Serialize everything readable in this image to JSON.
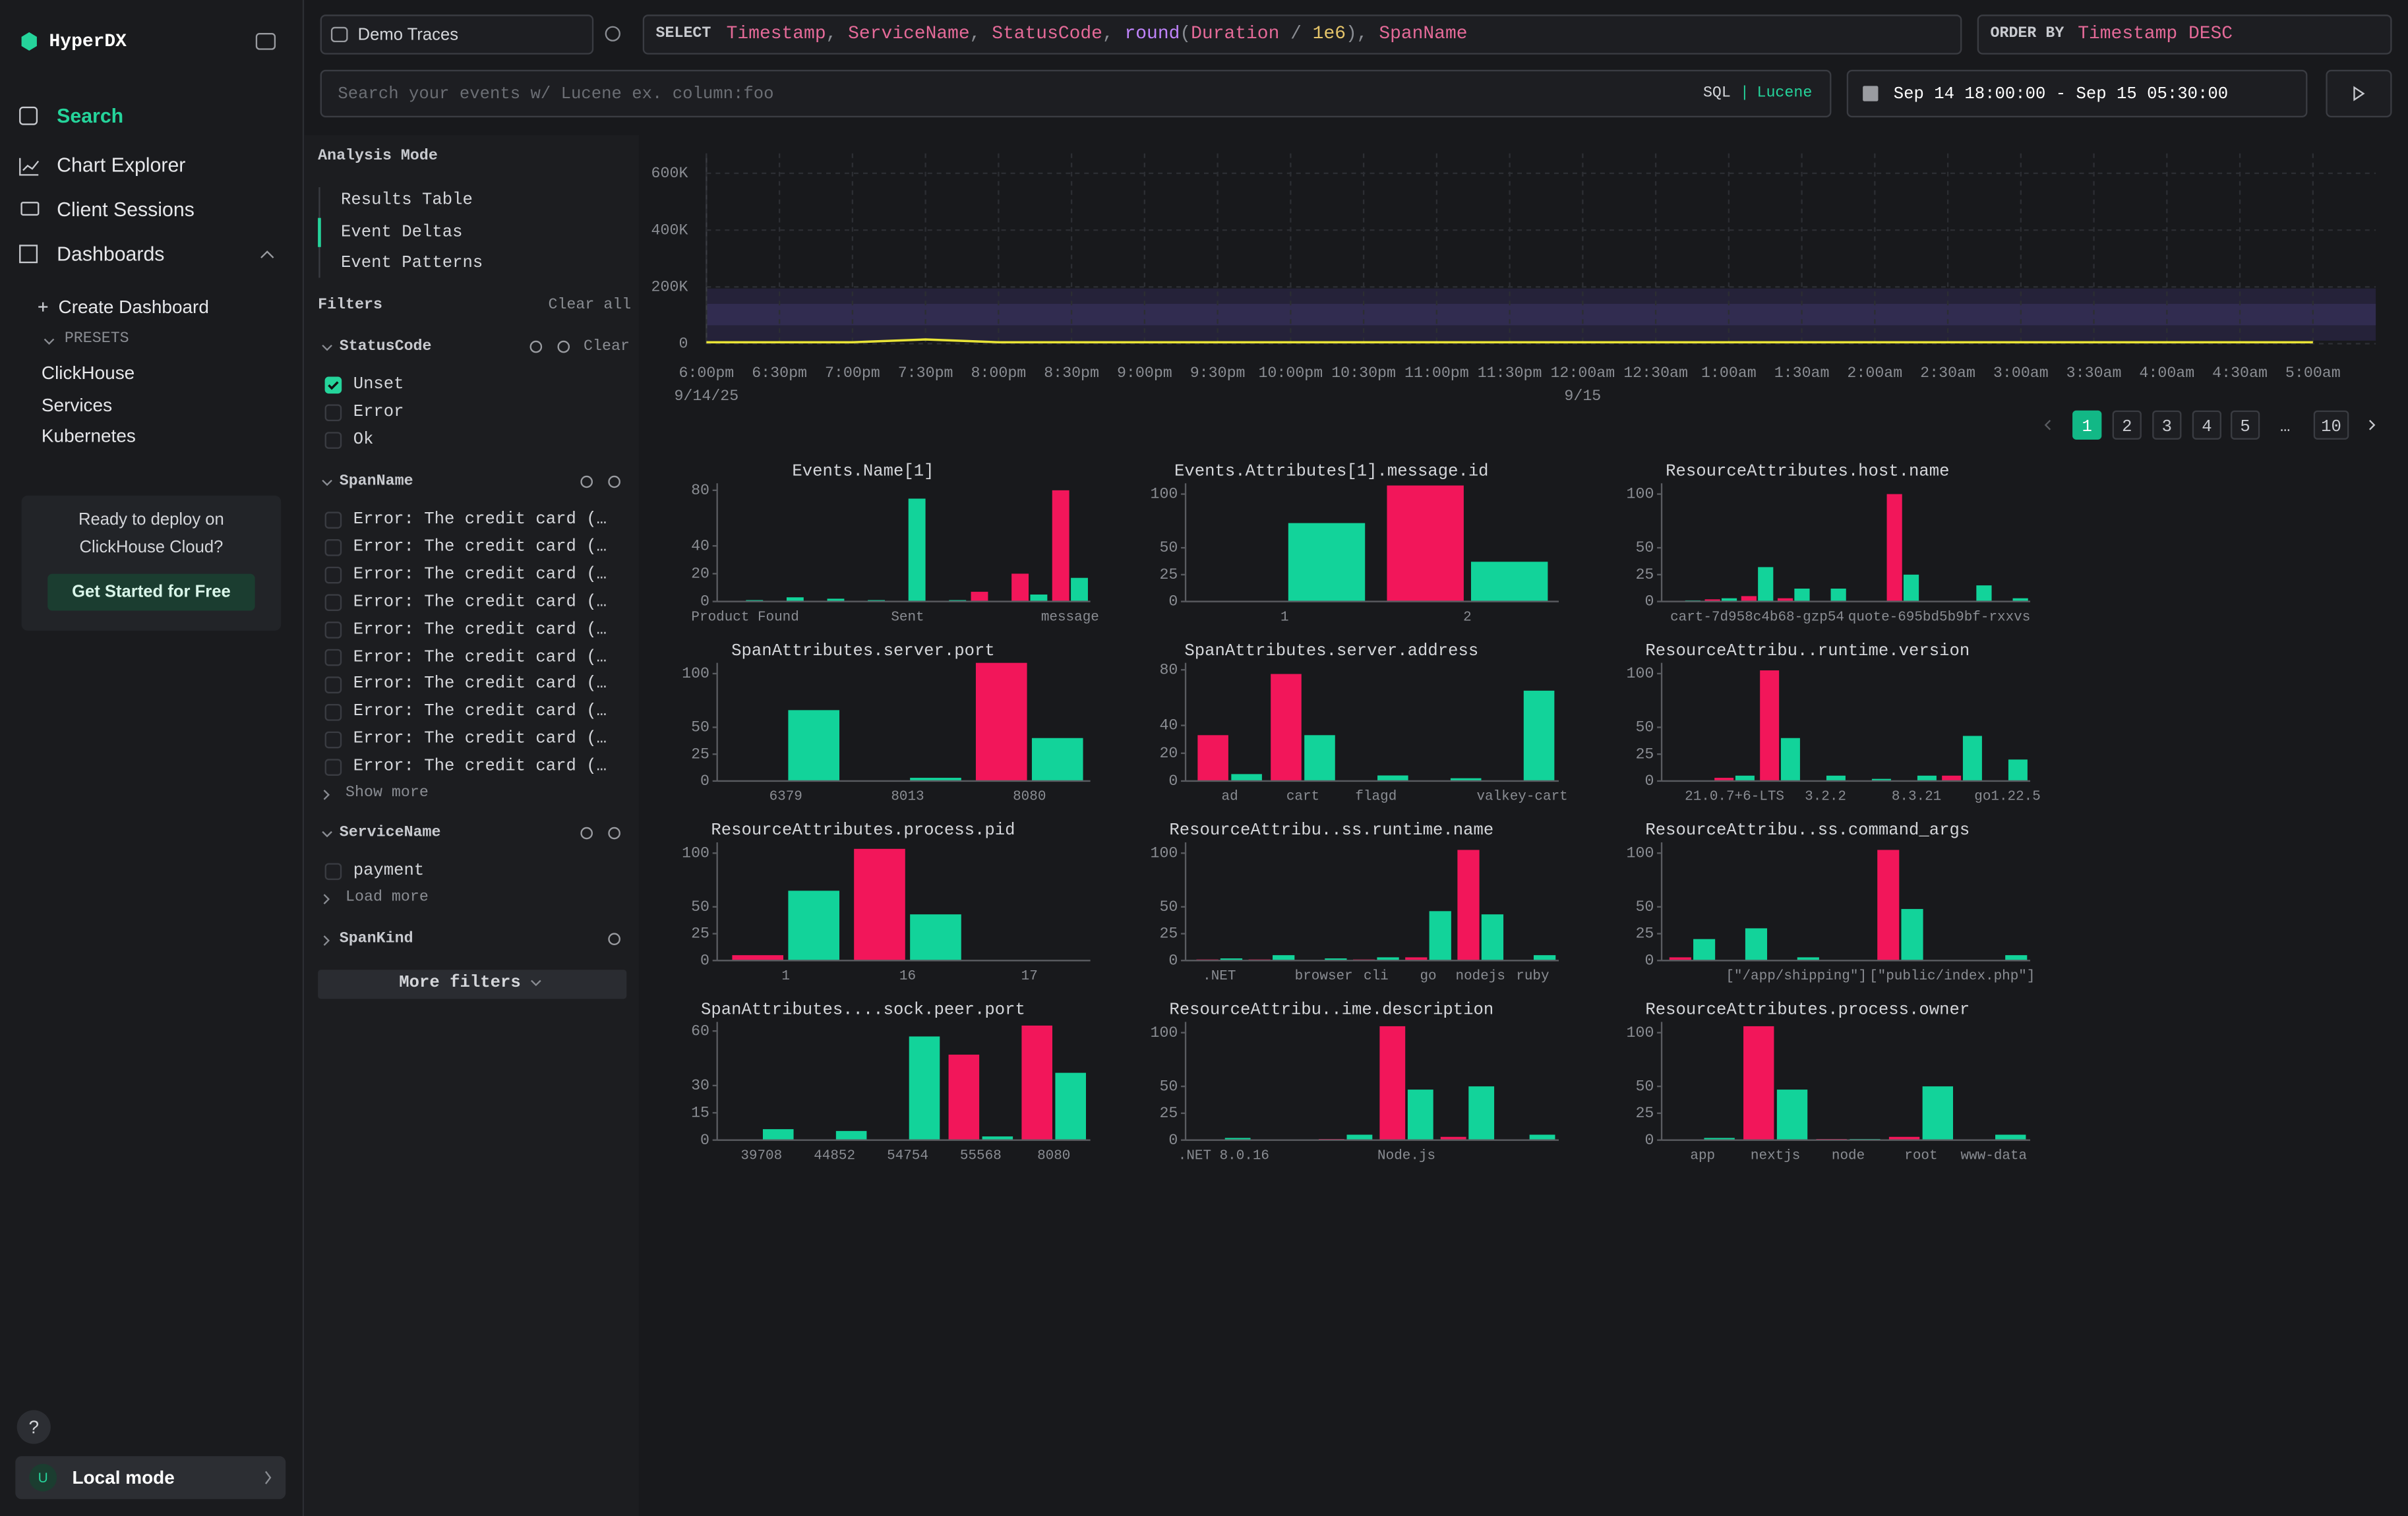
{
  "sidebar": {
    "brand": "HyperDX",
    "nav": [
      "Search",
      "Chart Explorer",
      "Client Sessions",
      "Dashboards"
    ],
    "create": "Create Dashboard",
    "presets_label": "PRESETS",
    "presets": [
      "ClickHouse",
      "Services",
      "Kubernetes"
    ],
    "promo": [
      "Ready to deploy on",
      "ClickHouse Cloud?"
    ],
    "promo_button": "Get Started for Free",
    "help": "?",
    "user_initial": "U",
    "mode": "Local mode"
  },
  "toolbar": {
    "source": "Demo Traces",
    "select_keyword": "SELECT",
    "select_tokens": [
      "Timestamp",
      ", ",
      "ServiceName",
      ", ",
      "StatusCode",
      ", ",
      "round",
      "(",
      "Duration",
      " / ",
      "1e6",
      "), ",
      "SpanName"
    ],
    "order_keyword": "ORDER BY",
    "order_value": "Timestamp DESC",
    "search_placeholder": "Search your events w/ Lucene ex. column:foo",
    "sql": "SQL",
    "separator": "|",
    "lucene": "Lucene",
    "date_range": "Sep 14 18:00:00 - Sep 15 05:30:00"
  },
  "analysis": {
    "title": "Analysis Mode",
    "modes": [
      "Results Table",
      "Event Deltas",
      "Event Patterns"
    ]
  },
  "filters": {
    "title": "Filters",
    "clear_all": "Clear all",
    "status": {
      "name": "StatusCode",
      "clear": "Clear",
      "options": [
        "Unset",
        "Error",
        "Ok"
      ]
    },
    "span": {
      "name": "SpanName",
      "options": [
        "Error: The credit card (…",
        "Error: The credit card (…",
        "Error: The credit card (…",
        "Error: The credit card (…",
        "Error: The credit card (…",
        "Error: The credit card (…",
        "Error: The credit card (…",
        "Error: The credit card (…",
        "Error: The credit card (…",
        "Error: The credit card (…"
      ],
      "more": "Show more"
    },
    "service": {
      "name": "ServiceName",
      "options": [
        "payment"
      ],
      "more": "Load more"
    },
    "kind": {
      "name": "SpanKind"
    },
    "more_filters": "More filters"
  },
  "pagination": [
    "1",
    "2",
    "3",
    "4",
    "5",
    "…",
    "10"
  ],
  "chart_data": [
    {
      "type": "line",
      "categories": [
        "6:00pm",
        "6:30pm",
        "7:00pm",
        "7:30pm",
        "8:00pm",
        "8:30pm",
        "9:00pm",
        "9:30pm",
        "10:00pm",
        "10:30pm",
        "11:00pm",
        "11:30pm",
        "12:00am",
        "12:30am",
        "1:00am",
        "1:30am",
        "2:00am",
        "2:30am",
        "3:00am",
        "3:30am",
        "4:00am",
        "4:30am",
        "5:00am"
      ],
      "date_labels": [
        "9/14/25",
        "9/15"
      ],
      "values": [
        5000,
        5000,
        5000,
        15000,
        5000,
        5000,
        5000,
        5000,
        5000,
        5000,
        5000,
        5000,
        5000,
        5000,
        5000,
        5000,
        5000,
        5000,
        5000,
        5000,
        5000,
        5000,
        5000
      ],
      "color": "#e8e337",
      "ylim": [
        0,
        670000
      ],
      "yticks": [
        0,
        {
          "value": 200000,
          "label": "200K"
        },
        {
          "value": 400000,
          "label": "400K"
        },
        {
          "value": 600000,
          "label": "600K"
        }
      ],
      "grid": true
    },
    {
      "type": "bar",
      "title": "Events.Name[1]",
      "categories": [
        "Product Found",
        null,
        null,
        null,
        "Sent",
        null,
        null,
        null,
        "message"
      ],
      "ylim": [
        0,
        85
      ],
      "yticks": [
        0,
        20,
        40,
        80
      ],
      "series": [
        {
          "color": "#f2165a",
          "values": [
            null,
            null,
            null,
            null,
            null,
            null,
            7,
            20,
            80
          ]
        },
        {
          "color": "#12d39a",
          "values": [
            1,
            3,
            2,
            1,
            74,
            1,
            null,
            5,
            17
          ]
        }
      ]
    },
    {
      "type": "bar",
      "title": "Events.Attributes[1].message.id",
      "categories": [
        "1",
        "2"
      ],
      "ylim": [
        0,
        110
      ],
      "yticks": [
        0,
        25,
        50,
        100
      ],
      "series": [
        {
          "color": "#f2165a",
          "values": [
            null,
            108
          ]
        },
        {
          "color": "#12d39a",
          "values": [
            73,
            37
          ]
        }
      ]
    },
    {
      "type": "bar",
      "title": "ResourceAttributes.host.name",
      "categories": [
        null,
        null,
        "cart-7d958c4b68-gzp54",
        null,
        null,
        null,
        null,
        "quote-695bd5b9bf-rxxvs",
        null,
        null
      ],
      "ylim": [
        0,
        110
      ],
      "yticks": [
        0,
        25,
        50,
        100
      ],
      "series": [
        {
          "color": "#f2165a",
          "values": [
            null,
            2,
            5,
            3,
            null,
            null,
            100,
            null,
            null,
            null
          ]
        },
        {
          "color": "#12d39a",
          "values": [
            1,
            3,
            32,
            12,
            12,
            null,
            25,
            null,
            15,
            3
          ]
        }
      ]
    },
    {
      "type": "bar",
      "title": "SpanAttributes.server.port",
      "categories": [
        "6379",
        "8013",
        "8080"
      ],
      "ylim": [
        0,
        110
      ],
      "yticks": [
        0,
        25,
        50,
        100
      ],
      "series": [
        {
          "color": "#f2165a",
          "values": [
            null,
            null,
            110
          ]
        },
        {
          "color": "#12d39a",
          "values": [
            66,
            3,
            40
          ]
        }
      ]
    },
    {
      "type": "bar",
      "title": "SpanAttributes.server.address",
      "categories": [
        "ad",
        "cart",
        "flagd",
        null,
        "valkey-cart"
      ],
      "ylim": [
        0,
        85
      ],
      "yticks": [
        0,
        20,
        40,
        80
      ],
      "series": [
        {
          "color": "#f2165a",
          "values": [
            33,
            77,
            null,
            null,
            null
          ]
        },
        {
          "color": "#12d39a",
          "values": [
            5,
            33,
            4,
            2,
            65
          ]
        }
      ]
    },
    {
      "type": "bar",
      "title": "ResourceAttribu..runtime.version",
      "categories": [
        null,
        "21.0.7+6-LTS",
        null,
        "3.2.2",
        null,
        "8.3.21",
        null,
        "go1.22.5"
      ],
      "ylim": [
        0,
        110
      ],
      "yticks": [
        0,
        25,
        50,
        100
      ],
      "series": [
        {
          "color": "#f2165a",
          "values": [
            null,
            3,
            103,
            null,
            null,
            null,
            5,
            null
          ]
        },
        {
          "color": "#12d39a",
          "values": [
            null,
            5,
            40,
            5,
            2,
            5,
            42,
            20
          ]
        }
      ]
    },
    {
      "type": "bar",
      "title": "ResourceAttributes.process.pid",
      "categories": [
        "1",
        "16",
        "17"
      ],
      "ylim": [
        0,
        110
      ],
      "yticks": [
        0,
        25,
        50,
        100
      ],
      "series": [
        {
          "color": "#f2165a",
          "values": [
            5,
            104,
            null
          ]
        },
        {
          "color": "#12d39a",
          "values": [
            65,
            43,
            null
          ]
        }
      ]
    },
    {
      "type": "bar",
      "title": "ResourceAttribu..ss.runtime.name",
      "categories": [
        ".NET",
        null,
        "browser",
        "cli",
        "go",
        "nodejs",
        "ruby"
      ],
      "ylim": [
        0,
        110
      ],
      "yticks": [
        0,
        25,
        50,
        100
      ],
      "series": [
        {
          "color": "#f2165a",
          "values": [
            1,
            1,
            null,
            1,
            3,
            103,
            null
          ]
        },
        {
          "color": "#12d39a",
          "values": [
            2,
            5,
            2,
            3,
            46,
            43,
            5
          ]
        }
      ]
    },
    {
      "type": "bar",
      "title": "ResourceAttribu..ss.command_args",
      "categories": [
        null,
        null,
        "[\"/app/shipping\"]",
        null,
        null,
        "[\"public/index.php\"]",
        null
      ],
      "ylim": [
        0,
        110
      ],
      "yticks": [
        0,
        25,
        50,
        100
      ],
      "series": [
        {
          "color": "#f2165a",
          "values": [
            3,
            null,
            null,
            null,
            103,
            null,
            null
          ]
        },
        {
          "color": "#12d39a",
          "values": [
            20,
            30,
            3,
            null,
            48,
            null,
            5
          ]
        }
      ]
    },
    {
      "type": "bar",
      "title": "SpanAttributes....sock.peer.port",
      "categories": [
        "39708",
        "44852",
        "54754",
        "55568",
        "8080"
      ],
      "ylim": [
        0,
        65
      ],
      "yticks": [
        0,
        15,
        30,
        60
      ],
      "series": [
        {
          "color": "#f2165a",
          "values": [
            null,
            null,
            null,
            47,
            63
          ]
        },
        {
          "color": "#12d39a",
          "values": [
            6,
            5,
            57,
            2,
            37
          ]
        }
      ]
    },
    {
      "type": "bar",
      "title": "ResourceAttribu..ime.description",
      "categories": [
        ".NET 8.0.16",
        null,
        null,
        "Node.js",
        null,
        null
      ],
      "ylim": [
        0,
        110
      ],
      "yticks": [
        0,
        25,
        50,
        100
      ],
      "series": [
        {
          "color": "#f2165a",
          "values": [
            null,
            null,
            1,
            106,
            3,
            null
          ]
        },
        {
          "color": "#12d39a",
          "values": [
            2,
            null,
            5,
            47,
            50,
            5
          ]
        }
      ]
    },
    {
      "type": "bar",
      "title": "ResourceAttributes.process.owner",
      "categories": [
        "app",
        "nextjs",
        "node",
        "root",
        "www-data"
      ],
      "ylim": [
        0,
        110
      ],
      "yticks": [
        0,
        25,
        50,
        100
      ],
      "series": [
        {
          "color": "#f2165a",
          "values": [
            null,
            106,
            1,
            3,
            null
          ]
        },
        {
          "color": "#12d39a",
          "values": [
            2,
            47,
            1,
            50,
            5
          ]
        }
      ]
    }
  ]
}
